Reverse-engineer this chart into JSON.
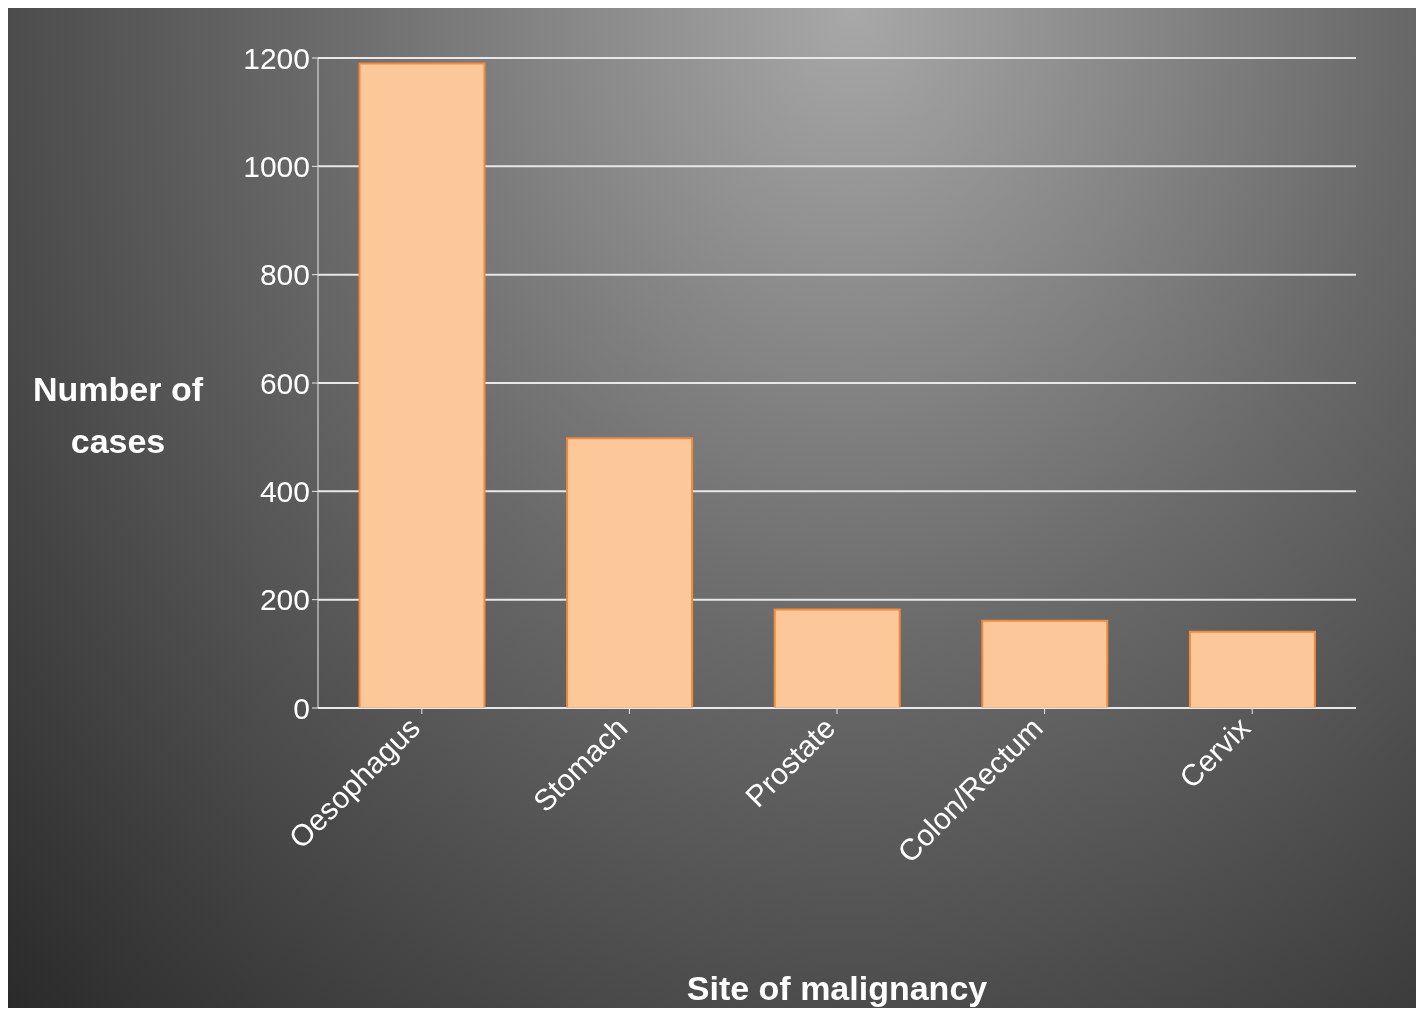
{
  "chart_data": {
    "type": "bar",
    "xlabel": "Site of malignancy",
    "ylabel": "Number of cases",
    "categories": [
      "Oesophagus",
      "Stomach",
      "Prostate",
      "Colon/Rectum",
      "Cervix"
    ],
    "values": [
      1190,
      498,
      182,
      161,
      141
    ],
    "color": "#fdc899",
    "ylim": [
      0,
      1200
    ],
    "yticks": [
      0,
      200,
      400,
      600,
      800,
      1000,
      1200
    ],
    "grid": "y"
  }
}
